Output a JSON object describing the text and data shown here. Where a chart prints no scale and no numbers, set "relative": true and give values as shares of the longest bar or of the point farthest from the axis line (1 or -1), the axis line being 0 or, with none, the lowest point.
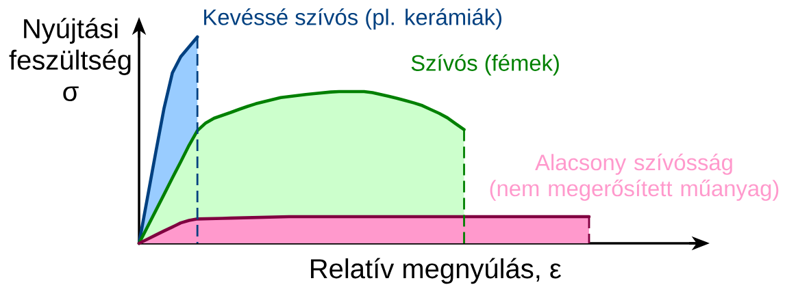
{
  "chart_data": {
    "type": "area",
    "relative": true,
    "xlabel": "Relatív megnyúlás, ε",
    "ylabel": "Nyújtási feszültség σ",
    "categories": [
      null,
      null,
      null,
      null,
      null,
      null,
      null,
      null,
      null,
      null,
      null,
      null,
      null,
      null,
      null,
      null,
      null,
      null,
      null,
      null,
      null,
      null,
      null,
      null,
      null,
      null,
      null,
      null,
      null,
      null,
      null,
      null,
      null,
      null,
      null,
      null,
      null,
      null,
      null,
      null,
      null,
      null,
      null,
      null,
      null,
      null,
      null,
      null,
      null,
      null,
      null,
      null,
      null,
      null,
      null
    ],
    "series": [
      {
        "name": "Kevéssé szívós (pl. kerámiák)",
        "color": "#99ccff",
        "values": [
          0,
          0.22,
          0.44,
          0.655,
          0.826,
          0.904,
          0.952,
          1,
          null,
          null,
          null,
          null,
          null,
          null,
          null,
          null,
          null,
          null,
          null,
          null,
          null,
          null,
          null,
          null,
          null,
          null,
          null,
          null,
          null,
          null,
          null,
          null,
          null,
          null,
          null,
          null,
          null,
          null,
          null,
          null,
          null,
          null,
          null,
          null,
          null,
          null,
          null,
          null,
          null,
          null,
          null,
          null,
          null,
          null,
          null
        ]
      },
      {
        "name": "Szívós (fémek)",
        "color": "#ccffcc",
        "values": [
          0,
          0.079,
          0.158,
          0.237,
          0.317,
          0.395,
          0.475,
          0.546,
          0.583,
          0.606,
          0.62,
          0.634,
          0.649,
          0.663,
          0.676,
          0.686,
          0.696,
          0.706,
          0.711,
          0.716,
          0.721,
          0.725,
          0.729,
          0.733,
          0.735,
          0.735,
          0.735,
          0.735,
          0.73,
          0.721,
          0.712,
          0.702,
          0.691,
          0.68,
          0.667,
          0.648,
          0.63,
          0.608,
          0.579,
          0.551,
          null,
          null,
          null,
          null,
          null,
          null,
          null,
          null,
          null,
          null,
          null,
          null,
          null,
          null,
          null
        ]
      },
      {
        "name": "Alacsony szívósság (nem megerősített műanyag)",
        "color": "#ff99cc",
        "values": [
          0,
          0.02,
          0.04,
          0.06,
          0.079,
          0.099,
          0.111,
          0.118,
          0.119,
          0.12,
          0.121,
          0.122,
          0.123,
          0.124,
          0.125,
          0.126,
          0.127,
          0.128,
          0.129,
          0.129,
          0.129,
          0.129,
          0.129,
          0.129,
          0.129,
          0.129,
          0.129,
          0.129,
          0.129,
          0.129,
          0.129,
          0.129,
          0.129,
          0.129,
          0.129,
          0.129,
          0.129,
          0.129,
          0.129,
          0.129,
          0.129,
          0.129,
          0.129,
          0.129,
          0.129,
          0.129,
          0.129,
          0.129,
          0.129,
          0.129,
          0.129,
          0.129,
          0.129,
          0.129,
          0.129
        ]
      }
    ]
  }
}
